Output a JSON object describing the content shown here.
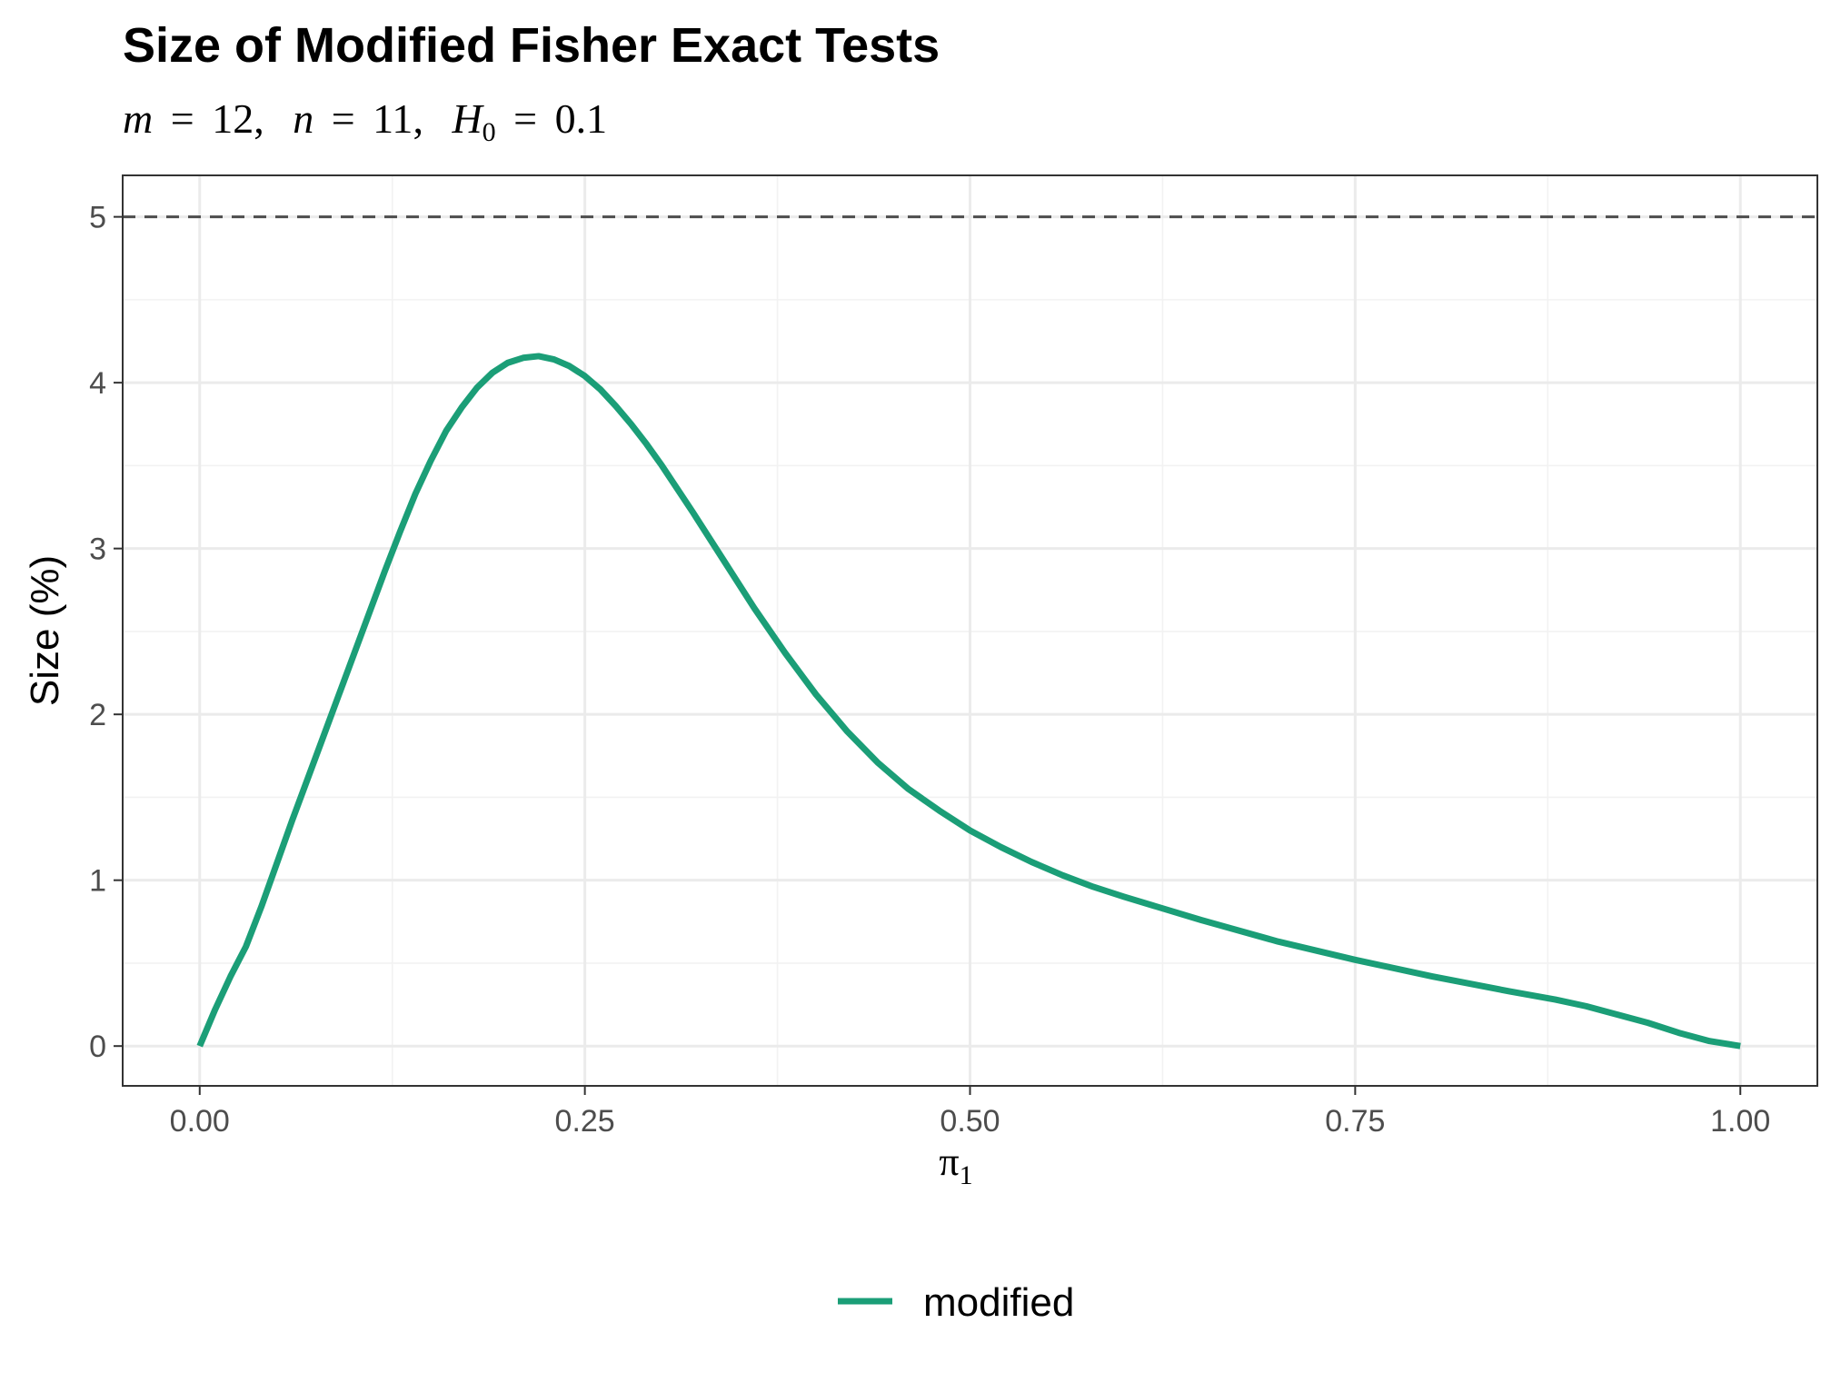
{
  "chart_data": {
    "type": "line",
    "title": "Size of Modified Fisher Exact Tests",
    "subtitle": {
      "m_symbol": "m",
      "m_value": "12",
      "n_symbol": "n",
      "n_value": "11",
      "h_symbol": "H",
      "h_subscript": "0",
      "h_value": "0.1",
      "equals": "=",
      "separator": ","
    },
    "xlabel": "π",
    "xlabel_subscript": "1",
    "ylabel": "Size (%)",
    "xlim": [
      -0.05,
      1.05
    ],
    "ylim": [
      -0.24,
      5.25
    ],
    "x_ticks": [
      0,
      0.25,
      0.5,
      0.75,
      1
    ],
    "x_tick_labels": [
      "0.00",
      "0.25",
      "0.50",
      "0.75",
      "1.00"
    ],
    "x_minor_ticks": [
      0.125,
      0.375,
      0.625,
      0.875
    ],
    "y_ticks": [
      0,
      1,
      2,
      3,
      4,
      5
    ],
    "y_tick_labels": [
      "0",
      "1",
      "2",
      "3",
      "4",
      "5"
    ],
    "y_minor_ticks": [
      0.5,
      1.5,
      2.5,
      3.5,
      4.5
    ],
    "grid": true,
    "reference_line": {
      "y": 5,
      "style": "dashed",
      "color": "#4d4d4d"
    },
    "legend_position": "bottom",
    "series": [
      {
        "name": "modified",
        "color": "#1b9e77",
        "x": [
          0,
          0.01,
          0.02,
          0.03,
          0.04,
          0.05,
          0.06,
          0.07,
          0.08,
          0.09,
          0.1,
          0.11,
          0.12,
          0.13,
          0.14,
          0.15,
          0.16,
          0.17,
          0.18,
          0.19,
          0.2,
          0.21,
          0.22,
          0.23,
          0.24,
          0.25,
          0.26,
          0.27,
          0.28,
          0.29,
          0.3,
          0.32,
          0.34,
          0.36,
          0.38,
          0.4,
          0.42,
          0.44,
          0.46,
          0.48,
          0.5,
          0.52,
          0.54,
          0.56,
          0.58,
          0.6,
          0.65,
          0.7,
          0.75,
          0.8,
          0.85,
          0.88,
          0.9,
          0.92,
          0.94,
          0.96,
          0.98,
          1.0
        ],
        "y": [
          0.0,
          0.22,
          0.42,
          0.6,
          0.84,
          1.1,
          1.36,
          1.61,
          1.86,
          2.11,
          2.36,
          2.61,
          2.86,
          3.1,
          3.33,
          3.53,
          3.71,
          3.85,
          3.97,
          4.06,
          4.12,
          4.15,
          4.16,
          4.14,
          4.1,
          4.04,
          3.96,
          3.86,
          3.75,
          3.63,
          3.5,
          3.22,
          2.93,
          2.64,
          2.37,
          2.12,
          1.9,
          1.71,
          1.55,
          1.42,
          1.3,
          1.2,
          1.11,
          1.03,
          0.96,
          0.9,
          0.76,
          0.63,
          0.52,
          0.42,
          0.33,
          0.28,
          0.24,
          0.19,
          0.14,
          0.08,
          0.03,
          0.0
        ]
      }
    ]
  }
}
